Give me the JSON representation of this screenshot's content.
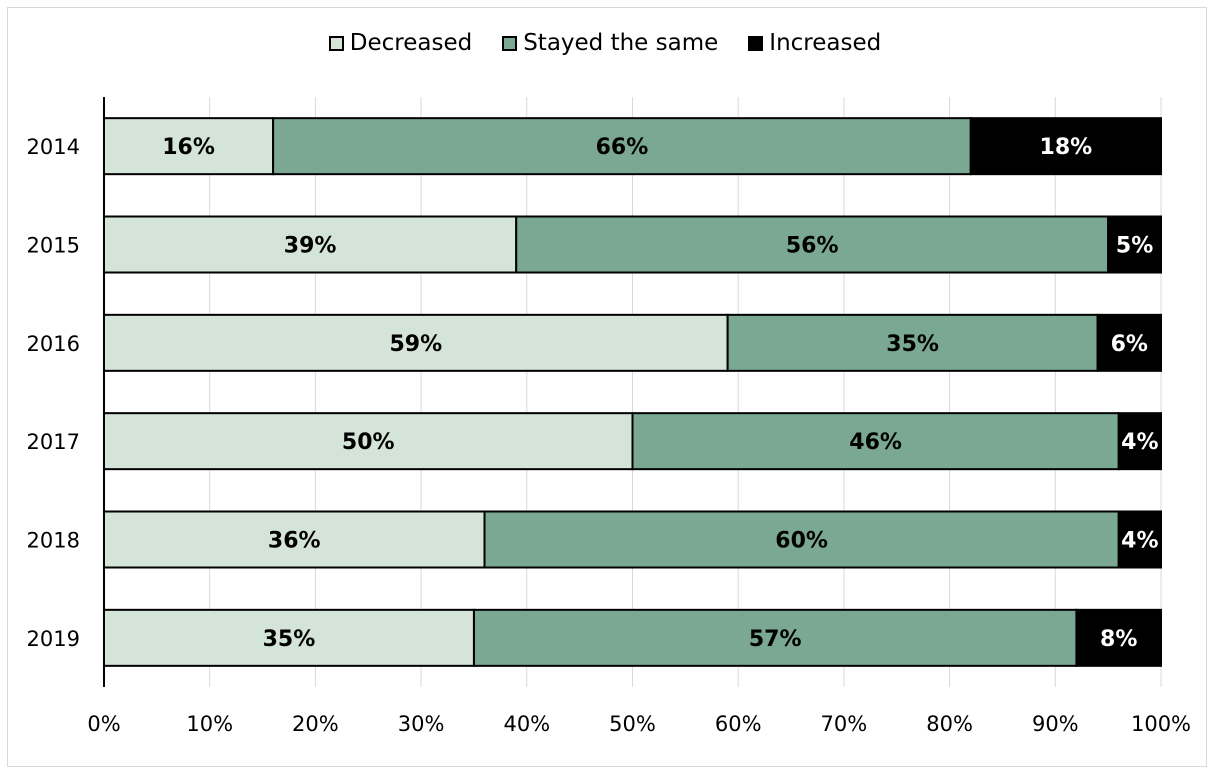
{
  "chart_data": {
    "type": "bar",
    "orientation": "horizontal",
    "stacked": true,
    "categories": [
      "2014",
      "2015",
      "2016",
      "2017",
      "2018",
      "2019"
    ],
    "series": [
      {
        "name": "Decreased",
        "color": "#d4e4d8",
        "values": [
          16,
          39,
          59,
          50,
          36,
          35
        ]
      },
      {
        "name": "Stayed the same",
        "color": "#7aa892",
        "values": [
          66,
          56,
          35,
          46,
          60,
          57
        ]
      },
      {
        "name": "Increased",
        "color": "#000000",
        "values": [
          18,
          5,
          6,
          4,
          4,
          8
        ]
      }
    ],
    "xlim": [
      0,
      100
    ],
    "x_ticks": [
      "0%",
      "10%",
      "20%",
      "30%",
      "40%",
      "50%",
      "60%",
      "70%",
      "80%",
      "90%",
      "100%"
    ],
    "data_labels": [
      [
        "16%",
        "66%",
        "18%"
      ],
      [
        "39%",
        "56%",
        "5%"
      ],
      [
        "59%",
        "35%",
        "6%"
      ],
      [
        "50%",
        "46%",
        "4%"
      ],
      [
        "36%",
        "60%",
        "4%"
      ],
      [
        "35%",
        "57%",
        "8%"
      ]
    ],
    "grid": true,
    "legend_position": "top"
  }
}
